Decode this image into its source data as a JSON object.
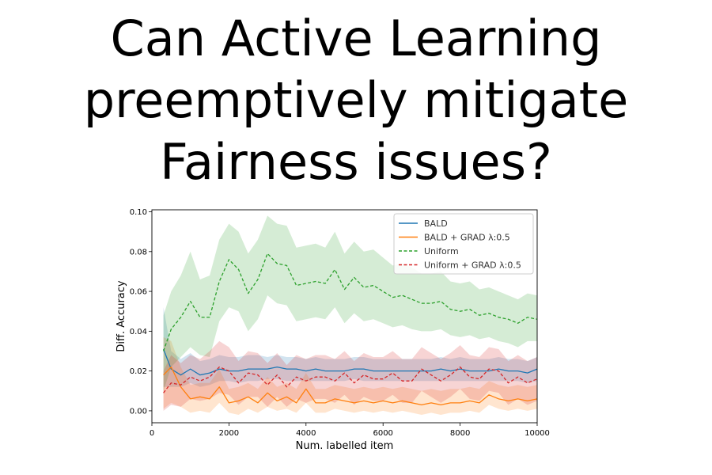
{
  "slide": {
    "title_lines": [
      "Can Active Learning",
      "preemptively mitigate",
      "Fairness issues?"
    ]
  },
  "chart_data": {
    "type": "line",
    "xlabel": "Num. labelled item",
    "ylabel": "Diff. Accuracy",
    "xlim": [
      0,
      10000
    ],
    "ylim": [
      -0.006,
      0.101
    ],
    "xticks": [
      0,
      2000,
      4000,
      6000,
      8000,
      10000
    ],
    "xtick_labels": [
      "0",
      "2000",
      "4000",
      "6000",
      "8000",
      "10000"
    ],
    "yticks": [
      0.0,
      0.02,
      0.04,
      0.06,
      0.08,
      0.1
    ],
    "ytick_labels": [
      "0.00",
      "0.02",
      "0.04",
      "0.06",
      "0.08",
      "0.10"
    ],
    "grid": false,
    "legend_position": "top-right",
    "x": [
      300,
      500,
      750,
      1000,
      1250,
      1500,
      1750,
      2000,
      2250,
      2500,
      2750,
      3000,
      3250,
      3500,
      3750,
      4000,
      4250,
      4500,
      4750,
      5000,
      5250,
      5500,
      5750,
      6000,
      6250,
      6500,
      6750,
      7000,
      7250,
      7500,
      7750,
      8000,
      8250,
      8500,
      8750,
      9000,
      9250,
      9500,
      9750,
      10000
    ],
    "series": [
      {
        "name": "BALD",
        "color": "#1f77b4",
        "dash": "solid",
        "values": [
          0.031,
          0.021,
          0.018,
          0.021,
          0.018,
          0.019,
          0.021,
          0.02,
          0.02,
          0.021,
          0.021,
          0.021,
          0.022,
          0.021,
          0.021,
          0.02,
          0.021,
          0.02,
          0.02,
          0.02,
          0.021,
          0.021,
          0.02,
          0.02,
          0.02,
          0.02,
          0.02,
          0.02,
          0.02,
          0.021,
          0.02,
          0.021,
          0.02,
          0.02,
          0.02,
          0.021,
          0.02,
          0.02,
          0.019,
          0.021
        ],
        "lower": [
          0.012,
          0.012,
          0.012,
          0.014,
          0.012,
          0.013,
          0.015,
          0.015,
          0.014,
          0.015,
          0.015,
          0.016,
          0.016,
          0.015,
          0.015,
          0.015,
          0.015,
          0.015,
          0.015,
          0.015,
          0.016,
          0.015,
          0.015,
          0.015,
          0.015,
          0.015,
          0.015,
          0.015,
          0.015,
          0.015,
          0.015,
          0.015,
          0.015,
          0.015,
          0.015,
          0.015,
          0.015,
          0.015,
          0.014,
          0.015
        ],
        "upper": [
          0.052,
          0.03,
          0.026,
          0.029,
          0.025,
          0.026,
          0.028,
          0.027,
          0.027,
          0.028,
          0.028,
          0.027,
          0.028,
          0.027,
          0.027,
          0.026,
          0.027,
          0.026,
          0.026,
          0.026,
          0.027,
          0.027,
          0.026,
          0.026,
          0.026,
          0.026,
          0.026,
          0.026,
          0.026,
          0.027,
          0.026,
          0.027,
          0.026,
          0.026,
          0.026,
          0.027,
          0.026,
          0.026,
          0.025,
          0.027
        ]
      },
      {
        "name": "BALD + GRAD λ:0.5",
        "color": "#ff7f0e",
        "dash": "solid",
        "values": [
          0.018,
          0.022,
          0.012,
          0.006,
          0.007,
          0.006,
          0.012,
          0.004,
          0.005,
          0.007,
          0.004,
          0.009,
          0.005,
          0.007,
          0.004,
          0.011,
          0.004,
          0.004,
          0.006,
          0.005,
          0.004,
          0.005,
          0.004,
          0.005,
          0.004,
          0.005,
          0.004,
          0.003,
          0.004,
          0.003,
          0.004,
          0.004,
          0.005,
          0.004,
          0.008,
          0.006,
          0.005,
          0.006,
          0.005,
          0.006
        ],
        "lower": [
          0.001,
          0.004,
          0.002,
          -0.001,
          0.0,
          -0.001,
          0.004,
          -0.001,
          -0.002,
          0.001,
          -0.001,
          0.002,
          0.0,
          0.001,
          -0.001,
          0.004,
          -0.001,
          -0.001,
          0.001,
          0.0,
          -0.001,
          0.0,
          -0.001,
          0.0,
          -0.001,
          0.0,
          -0.001,
          -0.002,
          -0.001,
          -0.002,
          -0.001,
          -0.001,
          0.0,
          -0.001,
          0.003,
          0.001,
          0.0,
          0.001,
          0.0,
          0.001
        ],
        "upper": [
          0.037,
          0.035,
          0.022,
          0.013,
          0.014,
          0.014,
          0.021,
          0.011,
          0.012,
          0.014,
          0.011,
          0.017,
          0.012,
          0.014,
          0.011,
          0.019,
          0.011,
          0.011,
          0.013,
          0.012,
          0.011,
          0.012,
          0.011,
          0.012,
          0.011,
          0.012,
          0.011,
          0.01,
          0.011,
          0.01,
          0.011,
          0.011,
          0.012,
          0.011,
          0.015,
          0.013,
          0.012,
          0.013,
          0.012,
          0.013
        ]
      },
      {
        "name": "Uniform",
        "color": "#2ca02c",
        "dash": "dashed",
        "values": [
          0.03,
          0.041,
          0.047,
          0.055,
          0.047,
          0.047,
          0.065,
          0.076,
          0.071,
          0.059,
          0.066,
          0.079,
          0.074,
          0.073,
          0.063,
          0.064,
          0.065,
          0.064,
          0.071,
          0.061,
          0.067,
          0.062,
          0.063,
          0.06,
          0.057,
          0.058,
          0.056,
          0.054,
          0.054,
          0.055,
          0.051,
          0.05,
          0.051,
          0.048,
          0.049,
          0.047,
          0.046,
          0.044,
          0.047,
          0.046
        ],
        "lower": [
          0.01,
          0.022,
          0.027,
          0.032,
          0.028,
          0.027,
          0.045,
          0.052,
          0.05,
          0.04,
          0.046,
          0.058,
          0.054,
          0.053,
          0.045,
          0.046,
          0.047,
          0.046,
          0.052,
          0.044,
          0.049,
          0.045,
          0.046,
          0.044,
          0.042,
          0.043,
          0.041,
          0.04,
          0.04,
          0.041,
          0.038,
          0.037,
          0.038,
          0.036,
          0.037,
          0.035,
          0.034,
          0.032,
          0.035,
          0.035
        ],
        "upper": [
          0.048,
          0.06,
          0.068,
          0.08,
          0.066,
          0.068,
          0.086,
          0.094,
          0.09,
          0.079,
          0.086,
          0.098,
          0.094,
          0.093,
          0.082,
          0.083,
          0.084,
          0.082,
          0.09,
          0.079,
          0.085,
          0.08,
          0.081,
          0.077,
          0.073,
          0.074,
          0.072,
          0.069,
          0.069,
          0.07,
          0.065,
          0.064,
          0.065,
          0.061,
          0.062,
          0.06,
          0.058,
          0.056,
          0.059,
          0.058
        ]
      },
      {
        "name": "Uniform + GRAD λ:0.5",
        "color": "#d62728",
        "dash": "dashed",
        "values": [
          0.009,
          0.014,
          0.013,
          0.017,
          0.015,
          0.017,
          0.022,
          0.02,
          0.014,
          0.019,
          0.018,
          0.013,
          0.018,
          0.012,
          0.017,
          0.015,
          0.017,
          0.017,
          0.015,
          0.019,
          0.014,
          0.018,
          0.016,
          0.016,
          0.019,
          0.015,
          0.015,
          0.021,
          0.018,
          0.015,
          0.018,
          0.022,
          0.017,
          0.016,
          0.021,
          0.02,
          0.014,
          0.017,
          0.014,
          0.016
        ],
        "lower": [
          0.0,
          0.003,
          0.002,
          0.006,
          0.005,
          0.006,
          0.009,
          0.008,
          0.003,
          0.007,
          0.007,
          0.002,
          0.007,
          0.002,
          0.006,
          0.004,
          0.006,
          0.006,
          0.004,
          0.008,
          0.003,
          0.007,
          0.005,
          0.005,
          0.008,
          0.004,
          0.004,
          0.01,
          0.007,
          0.004,
          0.007,
          0.011,
          0.006,
          0.005,
          0.01,
          0.009,
          0.003,
          0.006,
          0.003,
          0.005
        ],
        "upper": [
          0.02,
          0.028,
          0.024,
          0.028,
          0.026,
          0.03,
          0.035,
          0.032,
          0.025,
          0.03,
          0.029,
          0.024,
          0.029,
          0.023,
          0.028,
          0.026,
          0.028,
          0.028,
          0.026,
          0.03,
          0.025,
          0.029,
          0.027,
          0.027,
          0.03,
          0.026,
          0.026,
          0.032,
          0.029,
          0.026,
          0.029,
          0.033,
          0.028,
          0.027,
          0.032,
          0.031,
          0.025,
          0.028,
          0.025,
          0.027
        ]
      }
    ]
  }
}
